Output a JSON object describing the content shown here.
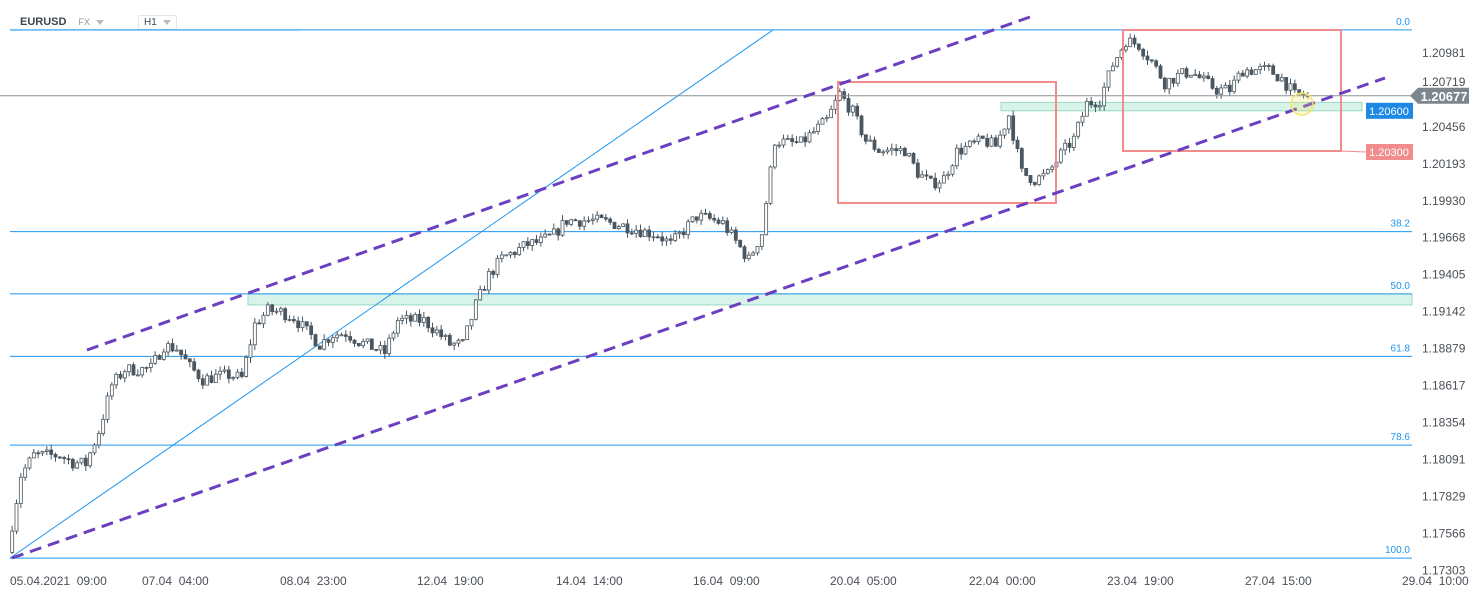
{
  "header": {
    "symbol": "EURUSD",
    "market": "FX",
    "timeframe": "H1"
  },
  "colors": {
    "fib": "#1e96f0",
    "channel": "#6a3fc0",
    "box": "#f08c8c",
    "zone": "#d8f3ea",
    "zone_border": "#9ad9c3",
    "candle": "#4a5660",
    "price_tag": "#7c868c",
    "support_tag": "#1e88e5",
    "yellow": "#f5e46a"
  },
  "chart_data": {
    "type": "candlestick",
    "title": "",
    "y_ticks": [
      "1.20981",
      "1.20719",
      "1.20456",
      "1.20193",
      "1.19930",
      "1.19668",
      "1.19405",
      "1.19142",
      "1.18879",
      "1.18617",
      "1.18354",
      "1.18091",
      "1.17829",
      "1.17566",
      "1.17303"
    ],
    "x_ticks": [
      "05.04.2021  09:00",
      "07.04  04:00",
      "08.04  23:00",
      "12.04  19:00",
      "14.04  14:00",
      "16.04  09:00",
      "20.04  05:00",
      "22.04  00:00",
      "23.04  19:00",
      "27.04  15:00",
      "29.04  10:00"
    ],
    "closes": [
      1.1745,
      1.1798,
      1.1812,
      1.1812,
      1.1812,
      1.1807,
      1.1806,
      1.1829,
      1.1862,
      1.1873,
      1.1873,
      1.1874,
      1.189,
      1.1888,
      1.1875,
      1.1866,
      1.1868,
      1.1869,
      1.1867,
      1.1905,
      1.1915,
      1.1914,
      1.191,
      1.19,
      1.1891,
      1.1898,
      1.1899,
      1.1893,
      1.1889,
      1.1885,
      1.1908,
      1.1908,
      1.1908,
      1.19,
      1.1891,
      1.1891,
      1.1919,
      1.194,
      1.1952,
      1.1957,
      1.1962,
      1.1964,
      1.1969,
      1.1979,
      1.1979,
      1.1979,
      1.1978,
      1.1976,
      1.1974,
      1.1971,
      1.1969,
      1.1962,
      1.1972,
      1.1982,
      1.198,
      1.1977,
      1.1964,
      1.1951,
      1.197,
      1.2036,
      1.2034,
      1.2034,
      1.2042,
      1.205,
      1.2069,
      1.2056,
      1.2036,
      1.2029,
      1.2029,
      1.2029,
      1.2013,
      1.2005,
      1.2009,
      1.2028,
      1.2032,
      1.2036,
      1.2032,
      1.2054,
      1.2013,
      1.2008,
      1.2012,
      1.2026,
      1.2037,
      1.2062,
      1.2065,
      1.209,
      1.2107,
      1.2104,
      1.2092,
      1.2077,
      1.2082,
      1.2085,
      1.2078,
      1.2072,
      1.2072,
      1.2086,
      1.2086,
      1.2086,
      1.208,
      1.2068,
      1.2068
    ],
    "last_price": "1.20677",
    "fib_levels": [
      {
        "label": "0.0",
        "price": 1.21145
      },
      {
        "label": "38.2",
        "price": 1.19711
      },
      {
        "label": "50.0",
        "price": 1.19268
      },
      {
        "label": "61.8",
        "price": 1.18824
      },
      {
        "label": "78.6",
        "price": 1.18193
      },
      {
        "label": "100.0",
        "price": 1.1739
      }
    ],
    "support_zone": {
      "label": "1.20600",
      "from": 1.2057,
      "to": 1.2063
    },
    "resistance_zone": {
      "from": 1.1919,
      "to": 1.19268
    },
    "box_level": {
      "label": "1.20300",
      "price": 1.2028
    }
  }
}
